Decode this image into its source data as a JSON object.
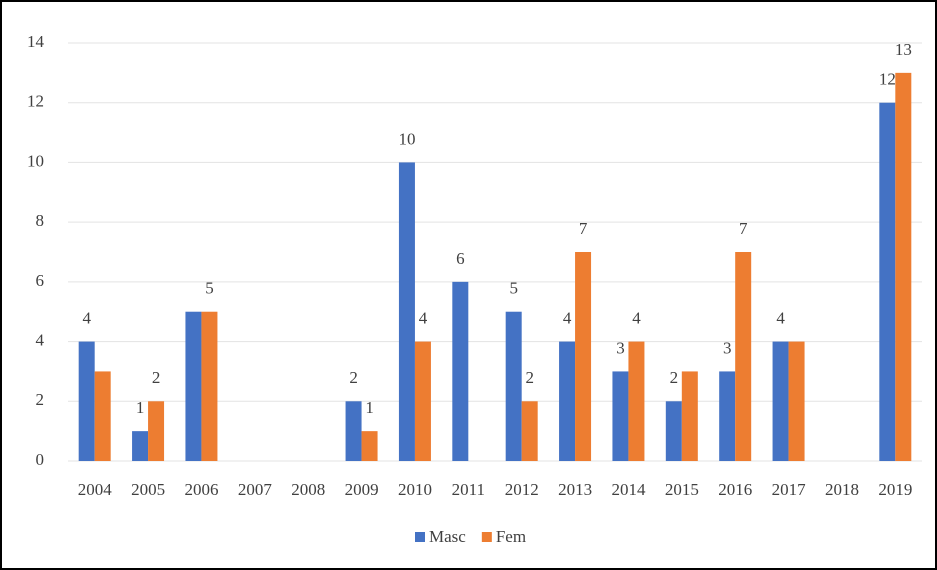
{
  "chart_data": {
    "type": "bar",
    "categories": [
      "2004",
      "2005",
      "2006",
      "2007",
      "2008",
      "2009",
      "2010",
      "2011",
      "2012",
      "2013",
      "2014",
      "2015",
      "2016",
      "2017",
      "2018",
      "2019"
    ],
    "series": [
      {
        "name": "Masc",
        "color": "#4472c4",
        "values": [
          4,
          1,
          5,
          null,
          null,
          2,
          10,
          6,
          5,
          4,
          3,
          2,
          3,
          4,
          null,
          12
        ],
        "value_labels": [
          "4",
          "1",
          null,
          null,
          null,
          "2",
          "10",
          "6",
          "5",
          "4",
          "3",
          "2",
          "3",
          "4",
          null,
          "12"
        ]
      },
      {
        "name": "Fem",
        "color": "#ed7d31",
        "values": [
          3,
          2,
          5,
          null,
          null,
          1,
          4,
          null,
          2,
          7,
          4,
          3,
          7,
          4,
          null,
          13
        ],
        "value_labels": [
          null,
          "2",
          "5",
          null,
          null,
          "1",
          "4",
          null,
          "2",
          "7",
          "4",
          null,
          "7",
          null,
          null,
          "13"
        ]
      }
    ],
    "ylim": [
      0,
      14
    ],
    "yticks": [
      0,
      2,
      4,
      6,
      8,
      10,
      12,
      14
    ],
    "grid": true,
    "legend": "bottom"
  }
}
